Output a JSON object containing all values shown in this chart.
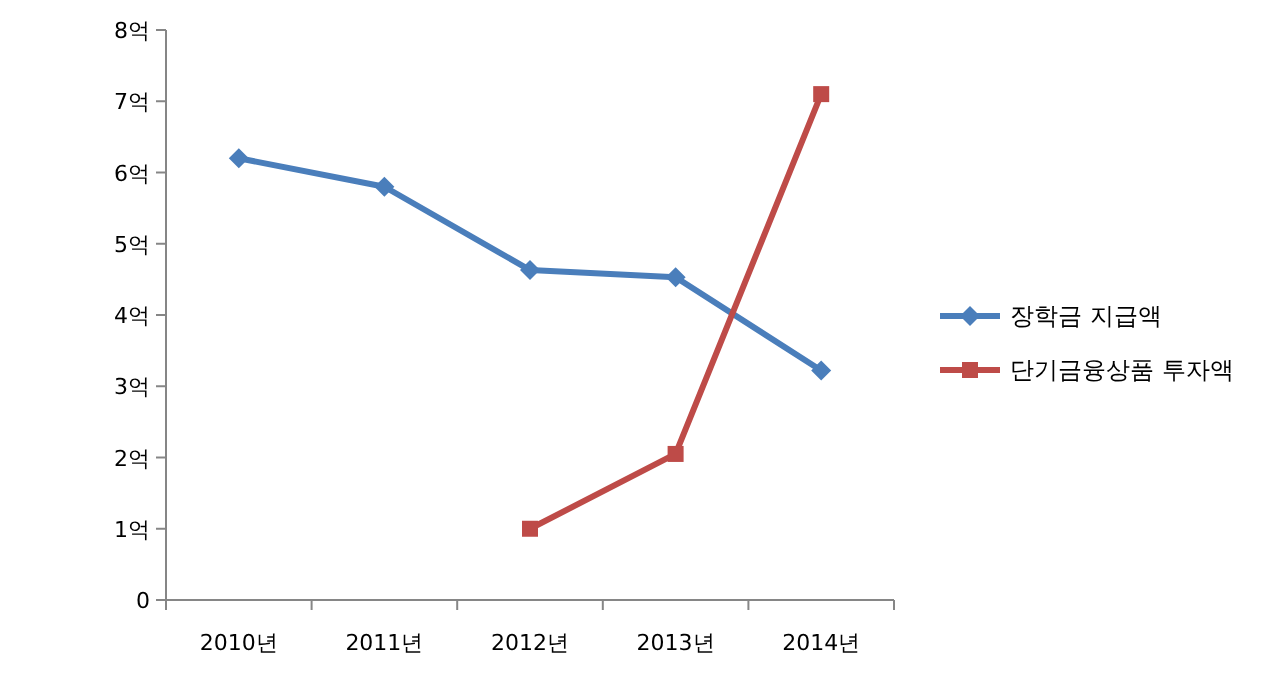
{
  "chart_data": {
    "type": "line",
    "categories": [
      "2010년",
      "2011년",
      "2012년",
      "2013년",
      "2014년"
    ],
    "series": [
      {
        "name": "장학금 지급액",
        "color": "#4a7ebb",
        "marker": "diamond",
        "values": [
          6.2,
          5.8,
          4.63,
          4.53,
          3.22
        ]
      },
      {
        "name": "단기금융상품 투자액",
        "color": "#be4b48",
        "marker": "square",
        "values": [
          null,
          null,
          1.0,
          2.05,
          7.1
        ]
      }
    ],
    "ylim": [
      0,
      8
    ],
    "yticks": [
      0,
      {
        "value": 1,
        "label": "1억"
      },
      {
        "value": 2,
        "label": "2억"
      },
      {
        "value": 3,
        "label": "3억"
      },
      {
        "value": 4,
        "label": "4억"
      },
      {
        "value": 5,
        "label": "5억"
      },
      {
        "value": 6,
        "label": "6억"
      },
      {
        "value": 7,
        "label": "7억"
      },
      {
        "value": 8,
        "label": "8억"
      }
    ],
    "grid": false,
    "legend": "right",
    "line_style": "solid"
  }
}
